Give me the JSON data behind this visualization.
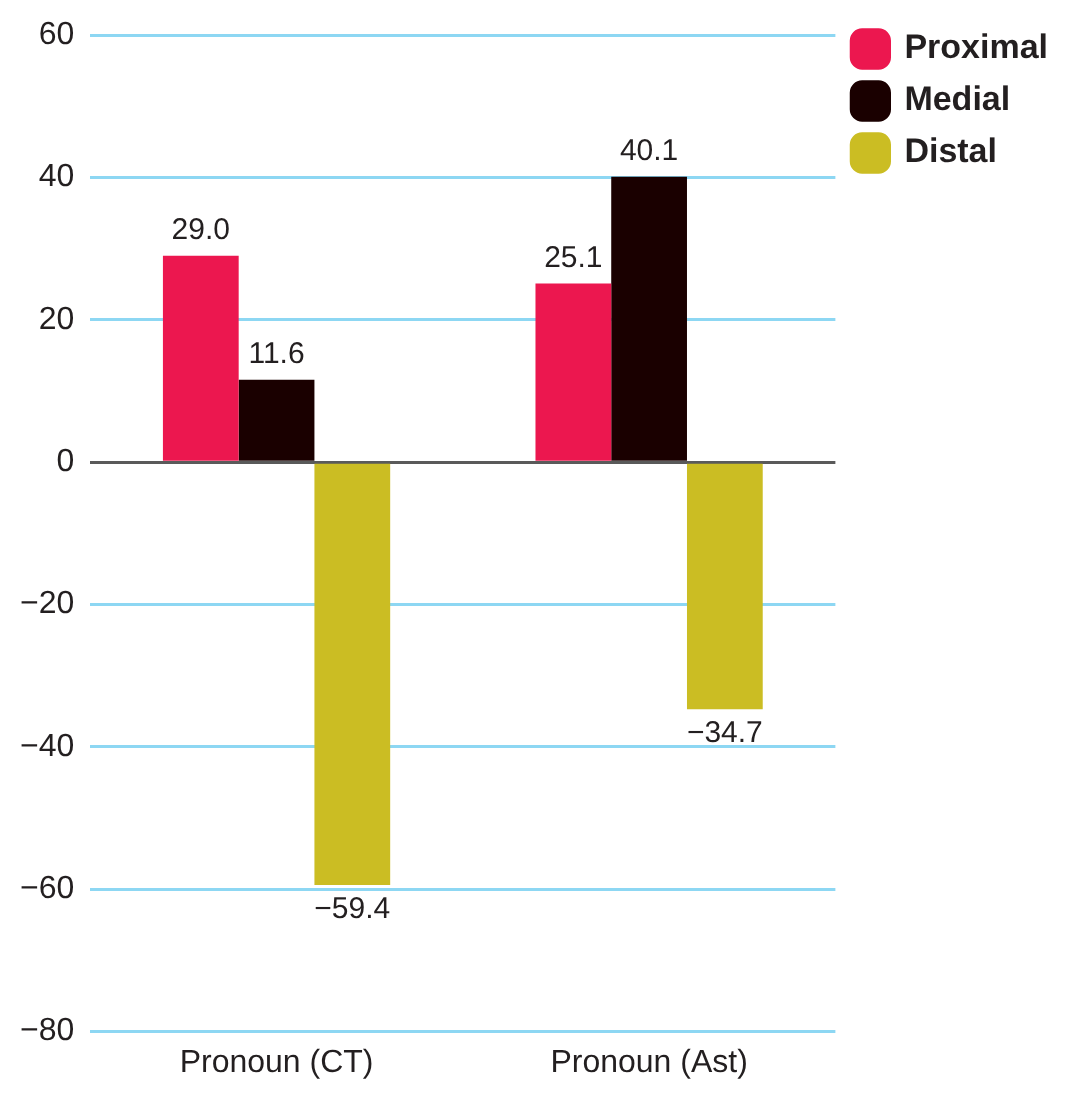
{
  "chart_data": {
    "type": "bar",
    "categories": [
      "Pronoun (CT)",
      "Pronoun (Ast)"
    ],
    "series": [
      {
        "name": "Proximal",
        "color": "#ec174f",
        "values": [
          29.0,
          25.1
        ],
        "value_labels": [
          "29.0",
          "25.1"
        ]
      },
      {
        "name": "Medial",
        "color": "#1a0000",
        "values": [
          11.6,
          40.1
        ],
        "value_labels": [
          "11.6",
          "40.1"
        ]
      },
      {
        "name": "Distal",
        "color": "#cbbd23",
        "values": [
          -59.4,
          -34.7
        ],
        "value_labels": [
          "−59.4",
          "−34.7"
        ]
      }
    ],
    "ylim": [
      -80,
      60
    ],
    "yticks": [
      {
        "value": -80,
        "label": "−80"
      },
      {
        "value": -60,
        "label": "−60"
      },
      {
        "value": -40,
        "label": "−40"
      },
      {
        "value": -20,
        "label": "−20"
      },
      0,
      20,
      40,
      60
    ],
    "grid": "y",
    "legend": "top right"
  }
}
